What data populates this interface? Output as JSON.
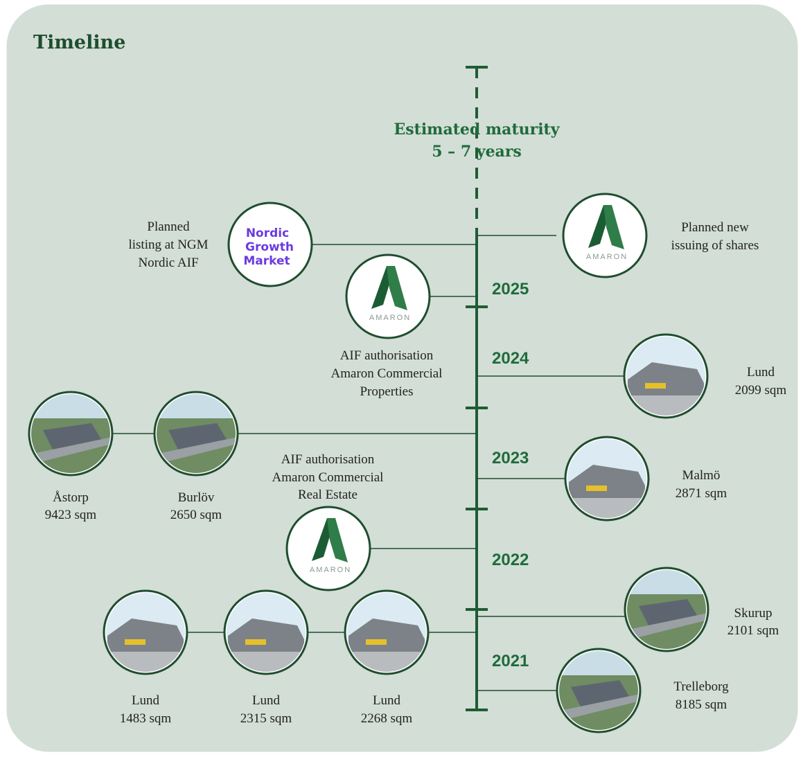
{
  "title": "Timeline",
  "maturity": [
    "Estimated maturity",
    "5 – 7 years"
  ],
  "years": [
    "2025",
    "2024",
    "2023",
    "2022",
    "2021"
  ],
  "logos": {
    "amaron": "AMARON",
    "ngm": [
      "Nordic",
      "Growth",
      "Market"
    ]
  },
  "events": [
    {
      "label": [
        "Planned",
        "listing at NGM",
        "Nordic AIF"
      ]
    },
    {
      "label": [
        "Planned new",
        "issuing of shares"
      ]
    },
    {
      "label": [
        "AIF authorisation",
        "Amaron Commercial",
        "Properties"
      ]
    },
    {
      "label": [
        "AIF authorisation",
        "Amaron Commercial",
        "Real Estate"
      ]
    }
  ],
  "properties": [
    {
      "place": "Lund",
      "area": "2099 sqm"
    },
    {
      "place": "Åstorp",
      "area": "9423 sqm"
    },
    {
      "place": "Burlöv",
      "area": "2650 sqm"
    },
    {
      "place": "Malmö",
      "area": "2871 sqm"
    },
    {
      "place": "Skurup",
      "area": "2101 sqm"
    },
    {
      "place": "Trelleborg",
      "area": "8185 sqm"
    },
    {
      "place": "Lund",
      "area": "1483 sqm"
    },
    {
      "place": "Lund",
      "area": "2315 sqm"
    },
    {
      "place": "Lund",
      "area": "2268 sqm"
    }
  ]
}
